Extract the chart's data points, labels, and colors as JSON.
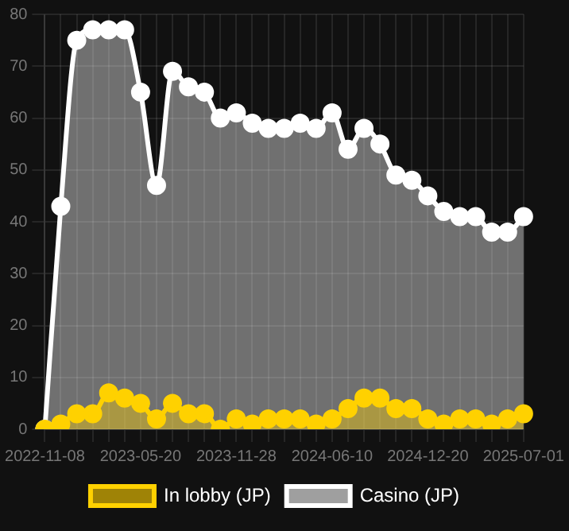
{
  "chart_data": {
    "type": "area",
    "categories": [
      "2022-11-08",
      null,
      null,
      null,
      null,
      null,
      "2023-05-20",
      null,
      null,
      null,
      null,
      null,
      "2023-11-28",
      null,
      null,
      null,
      null,
      null,
      "2024-06-10",
      null,
      null,
      null,
      null,
      null,
      "2024-12-20",
      null,
      null,
      null,
      null,
      null,
      "2025-07-01"
    ],
    "series": [
      {
        "name": "In lobby (JP)",
        "color": "#ffd100",
        "values": [
          0,
          1,
          3,
          3,
          7,
          6,
          5,
          2,
          5,
          3,
          3,
          0,
          2,
          1,
          2,
          2,
          2,
          1,
          2,
          4,
          6,
          6,
          4,
          4,
          2,
          1,
          2,
          2,
          1,
          2,
          3
        ]
      },
      {
        "name": "Casino (JP)",
        "color": "#ffffff",
        "values": [
          0,
          43,
          75,
          77,
          77,
          77,
          65,
          47,
          69,
          66,
          65,
          60,
          61,
          59,
          58,
          58,
          59,
          58,
          61,
          54,
          58,
          55,
          49,
          48,
          45,
          42,
          41,
          41,
          38,
          38,
          41
        ]
      }
    ],
    "ylim": [
      0,
      80
    ],
    "yticks": [
      0,
      10,
      20,
      30,
      40,
      50,
      60,
      70,
      80
    ],
    "grid": true,
    "legend": "bottom",
    "marker": "circle"
  }
}
